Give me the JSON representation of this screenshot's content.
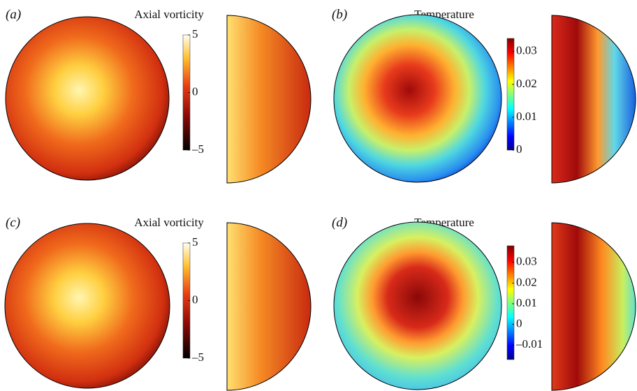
{
  "panels": [
    {
      "label": "(a)",
      "title": "Axial vorticity",
      "colormap": "hot",
      "clim": [
        -5,
        5
      ],
      "ticks": [
        {
          "value": 5,
          "label": "5"
        },
        {
          "value": 0,
          "label": "0"
        },
        {
          "value": -5,
          "label": "–5"
        }
      ]
    },
    {
      "label": "(b)",
      "title": "Temperature",
      "colormap": "jet",
      "clim": [
        0,
        0.034
      ],
      "ticks": [
        {
          "value": 0.03,
          "label": "0.03"
        },
        {
          "value": 0.02,
          "label": "0.02"
        },
        {
          "value": 0.01,
          "label": "0.01"
        },
        0
      ]
    },
    {
      "label": "(c)",
      "title": "Axial vorticity",
      "colormap": "hot",
      "clim": [
        -5,
        5
      ],
      "ticks": [
        {
          "value": 5,
          "label": "5"
        },
        {
          "value": 0,
          "label": "0"
        },
        {
          "value": -5,
          "label": "–5"
        }
      ]
    },
    {
      "label": "(d)",
      "title": "Temperature",
      "colormap": "jet",
      "clim": [
        -0.017,
        0.038
      ],
      "ticks": [
        {
          "value": 0.03,
          "label": "0.03"
        },
        {
          "value": 0.02,
          "label": "0.02"
        },
        {
          "value": 0.01,
          "label": "0.01"
        },
        0,
        {
          "value": -0.01,
          "label": "–0.01"
        }
      ]
    }
  ]
}
